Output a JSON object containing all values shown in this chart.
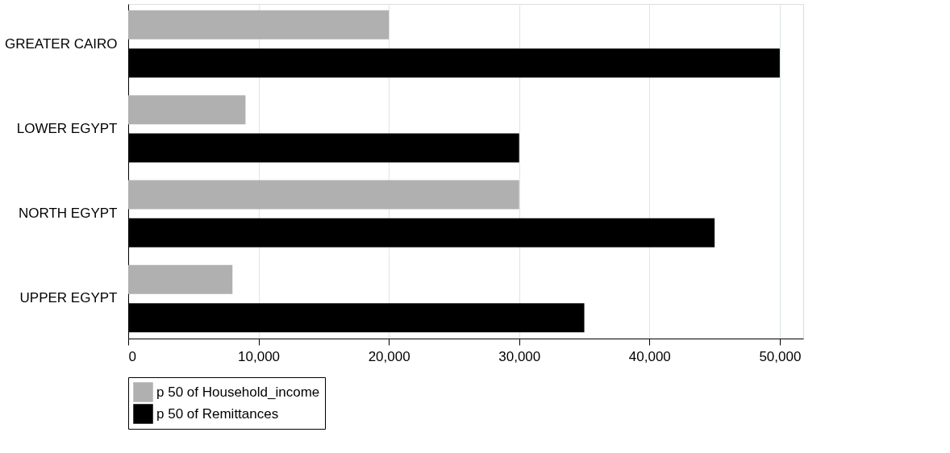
{
  "chart_data": {
    "type": "bar",
    "orientation": "horizontal",
    "categories": [
      "GREATER CAIRO",
      "LOWER EGYPT",
      "NORTH EGYPT",
      "UPPER EGYPT"
    ],
    "series": [
      {
        "name": "p 50 of Household_income",
        "color": "#b0b0b0",
        "values": [
          20000,
          9000,
          30000,
          8000
        ]
      },
      {
        "name": "p 50 of Remittances",
        "color": "#000000",
        "values": [
          50000,
          30000,
          45000,
          35000
        ]
      }
    ],
    "xlim": [
      0,
      51800
    ],
    "xticks": [
      {
        "value": 0,
        "label": "0"
      },
      {
        "value": 10000,
        "label": "10,000"
      },
      {
        "value": 20000,
        "label": "20,000"
      },
      {
        "value": 30000,
        "label": "30,000"
      },
      {
        "value": 40000,
        "label": "40,000"
      },
      {
        "value": 50000,
        "label": "50,000"
      }
    ],
    "grid": "x",
    "legend": "bottom"
  }
}
